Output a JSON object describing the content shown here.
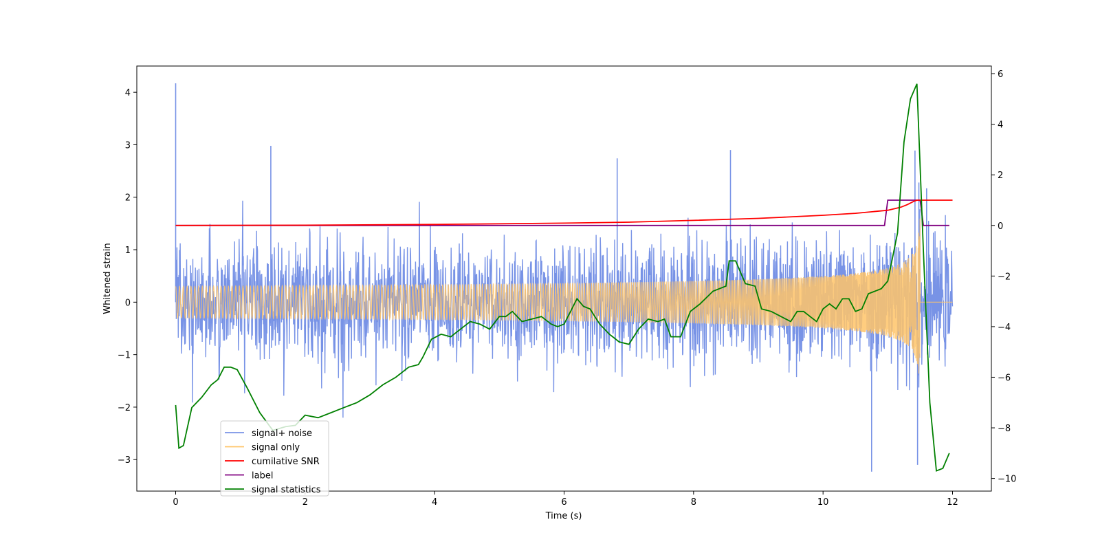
{
  "chart_data": {
    "type": "line",
    "xlabel": "Time (s)",
    "ylabel": "Whitened strain",
    "xlim": [
      -0.6,
      12.6
    ],
    "ylim_left": [
      -3.6,
      4.5
    ],
    "ylim_right": [
      -10.5,
      6.3
    ],
    "x_ticks": [
      "0",
      "2",
      "4",
      "6",
      "8",
      "10",
      "12"
    ],
    "y_ticks_left": [
      "−3",
      "−2",
      "−1",
      "0",
      "1",
      "2",
      "3",
      "4"
    ],
    "y_ticks_right": [
      "−10",
      "−8",
      "−6",
      "−4",
      "−2",
      "0",
      "2",
      "4",
      "6"
    ],
    "legend_position": "lower-left",
    "legend": [
      {
        "label": "signal+ noise",
        "color": "#7893e6"
      },
      {
        "label": "signal only",
        "color": "#ffc468"
      },
      {
        "label": "cumilative SNR",
        "color": "#ff0000"
      },
      {
        "label": "label",
        "color": "#800080"
      },
      {
        "label": "signal statistics",
        "color": "#008000"
      }
    ],
    "series": [
      {
        "name": "signal+ noise",
        "axis": "left",
        "color": "#7893e6",
        "duration_s": 12,
        "seed": 7,
        "noise_sigma": 0.52,
        "notable_spikes": [
          [
            0.0,
            4.17
          ],
          [
            1.47,
            2.98
          ],
          [
            6.82,
            2.74
          ],
          [
            8.57,
            2.9
          ],
          [
            10.75,
            -3.23
          ],
          [
            11.42,
            2.89
          ],
          [
            11.48,
            2.28
          ],
          [
            11.46,
            -3.1
          ],
          [
            11.6,
            2.17
          ]
        ]
      },
      {
        "name": "signal only",
        "axis": "left",
        "color": "#ffc468",
        "t_merge": 11.5,
        "end_amplitude": 2.2
      },
      {
        "name": "cumilative SNR",
        "axis": "right",
        "color": "#ff0000",
        "x": [
          0,
          2,
          4,
          6,
          7,
          8,
          9,
          10,
          10.5,
          11,
          11.2,
          11.3,
          11.4,
          11.45,
          11.5,
          12
        ],
        "y": [
          0,
          0.01,
          0.04,
          0.09,
          0.13,
          0.2,
          0.28,
          0.4,
          0.48,
          0.6,
          0.72,
          0.82,
          0.95,
          1.0,
          1.0,
          1.0
        ]
      },
      {
        "name": "label",
        "axis": "right",
        "color": "#800080",
        "x": [
          0,
          10.95,
          11.0,
          11.5,
          11.55,
          11.95
        ],
        "y": [
          0,
          0,
          1,
          1,
          0,
          0
        ]
      },
      {
        "name": "signal statistics",
        "axis": "right",
        "color": "#008000",
        "x": [
          0,
          0.05,
          0.12,
          0.25,
          0.4,
          0.55,
          0.65,
          0.75,
          0.85,
          0.95,
          1.1,
          1.3,
          1.5,
          1.7,
          1.85,
          2.0,
          2.2,
          2.4,
          2.6,
          2.8,
          3.0,
          3.2,
          3.4,
          3.6,
          3.75,
          3.82,
          3.95,
          4.1,
          4.25,
          4.4,
          4.55,
          4.7,
          4.85,
          5.0,
          5.1,
          5.2,
          5.35,
          5.5,
          5.65,
          5.8,
          5.9,
          6.0,
          6.1,
          6.2,
          6.3,
          6.4,
          6.55,
          6.7,
          6.85,
          7.0,
          7.15,
          7.3,
          7.45,
          7.55,
          7.65,
          7.8,
          7.95,
          8.1,
          8.3,
          8.5,
          8.55,
          8.65,
          8.8,
          8.95,
          9.05,
          9.2,
          9.35,
          9.5,
          9.6,
          9.7,
          9.8,
          9.9,
          10.0,
          10.1,
          10.2,
          10.3,
          10.4,
          10.5,
          10.6,
          10.7,
          10.8,
          10.9,
          11.0,
          11.15,
          11.25,
          11.35,
          11.45,
          11.55,
          11.65,
          11.75,
          11.85,
          11.95
        ],
        "y": [
          -7.1,
          -8.8,
          -8.7,
          -7.2,
          -6.8,
          -6.3,
          -6.1,
          -5.6,
          -5.6,
          -5.7,
          -6.4,
          -7.4,
          -8.1,
          -7.95,
          -7.9,
          -7.5,
          -7.6,
          -7.4,
          -7.2,
          -7.0,
          -6.7,
          -6.3,
          -6.0,
          -5.6,
          -5.5,
          -5.2,
          -4.5,
          -4.3,
          -4.4,
          -4.1,
          -3.8,
          -3.9,
          -4.1,
          -3.6,
          -3.6,
          -3.4,
          -3.8,
          -3.7,
          -3.6,
          -3.9,
          -4.0,
          -3.9,
          -3.4,
          -2.9,
          -3.2,
          -3.3,
          -3.9,
          -4.3,
          -4.6,
          -4.7,
          -4.1,
          -3.7,
          -3.8,
          -3.7,
          -4.4,
          -4.4,
          -3.4,
          -3.1,
          -2.6,
          -2.4,
          -1.4,
          -1.4,
          -2.3,
          -2.4,
          -3.3,
          -3.4,
          -3.6,
          -3.8,
          -3.4,
          -3.4,
          -3.6,
          -3.8,
          -3.3,
          -3.1,
          -3.3,
          -2.9,
          -2.9,
          -3.4,
          -3.3,
          -2.7,
          -2.6,
          -2.5,
          -2.2,
          -0.3,
          3.3,
          5.0,
          5.6,
          -1.0,
          -7.0,
          -9.7,
          -9.6,
          -9.0
        ]
      }
    ]
  }
}
